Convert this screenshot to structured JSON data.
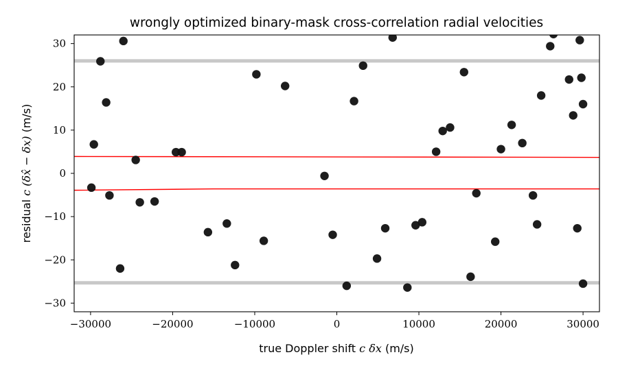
{
  "chart_data": {
    "type": "scatter",
    "title": "wrongly optimized binary-mask cross-correlation radial velocities",
    "xlabel": {
      "prefix": "true Doppler shift ",
      "math": "c δx",
      "suffix": " (m/s)"
    },
    "ylabel": {
      "prefix": "residual ",
      "math": "c (δx̂ − δx)",
      "suffix": " (m/s)"
    },
    "xlim": [
      -32000,
      32000
    ],
    "ylim": [
      -32,
      32
    ],
    "xticks": [
      -30000,
      -20000,
      -10000,
      0,
      10000,
      20000,
      30000
    ],
    "xtick_labels": [
      "−30000",
      "−20000",
      "−10000",
      "0",
      "10000",
      "20000",
      "30000"
    ],
    "yticks": [
      -30,
      -20,
      -10,
      0,
      10,
      20,
      30
    ],
    "ytick_labels": [
      "−30",
      "−20",
      "−10",
      "0",
      "10",
      "20",
      "30"
    ],
    "grid": false,
    "colors": {
      "points": "#111111",
      "bands": "#c8c8c8",
      "fit_lines": "#ff0000"
    },
    "bands": [
      {
        "y": 26.0
      },
      {
        "y": -25.3
      }
    ],
    "fit_lines": [
      {
        "x": [
          -32000,
          32000
        ],
        "y": [
          3.9,
          3.7
        ]
      },
      {
        "x": [
          -32000,
          -15000,
          32000
        ],
        "y": [
          -3.9,
          -3.6,
          -3.6
        ]
      }
    ],
    "points": [
      [
        -29900,
        -3.3
      ],
      [
        -29600,
        6.7
      ],
      [
        -28800,
        25.9
      ],
      [
        -28100,
        16.4
      ],
      [
        -27700,
        -5.1
      ],
      [
        -26400,
        -22.0
      ],
      [
        -26000,
        30.6
      ],
      [
        -24500,
        3.1
      ],
      [
        -24000,
        -6.7
      ],
      [
        -22200,
        -6.5
      ],
      [
        -19600,
        4.9
      ],
      [
        -18900,
        4.9
      ],
      [
        -15700,
        -13.6
      ],
      [
        -13400,
        -11.6
      ],
      [
        -12400,
        -21.2
      ],
      [
        -9800,
        22.9
      ],
      [
        -8900,
        -15.6
      ],
      [
        -6300,
        20.2
      ],
      [
        -1500,
        -0.6
      ],
      [
        -500,
        -14.2
      ],
      [
        1200,
        -26.0
      ],
      [
        2100,
        16.7
      ],
      [
        3200,
        24.9
      ],
      [
        4900,
        -19.7
      ],
      [
        5900,
        -12.7
      ],
      [
        6800,
        31.4
      ],
      [
        8600,
        -26.4
      ],
      [
        9600,
        -12.0
      ],
      [
        10400,
        -11.3
      ],
      [
        12100,
        5.0
      ],
      [
        12900,
        9.8
      ],
      [
        13800,
        10.6
      ],
      [
        15500,
        23.4
      ],
      [
        16300,
        -23.9
      ],
      [
        17000,
        -4.6
      ],
      [
        19300,
        -15.8
      ],
      [
        20000,
        5.6
      ],
      [
        21300,
        11.2
      ],
      [
        22600,
        7.0
      ],
      [
        23900,
        -5.1
      ],
      [
        24400,
        -11.8
      ],
      [
        24900,
        18.0
      ],
      [
        26000,
        29.4
      ],
      [
        26400,
        32.2
      ],
      [
        28300,
        21.7
      ],
      [
        28800,
        13.4
      ],
      [
        29300,
        -12.7
      ],
      [
        29600,
        30.8
      ],
      [
        29800,
        22.1
      ],
      [
        30000,
        16.0
      ],
      [
        30000,
        -25.5
      ]
    ]
  }
}
